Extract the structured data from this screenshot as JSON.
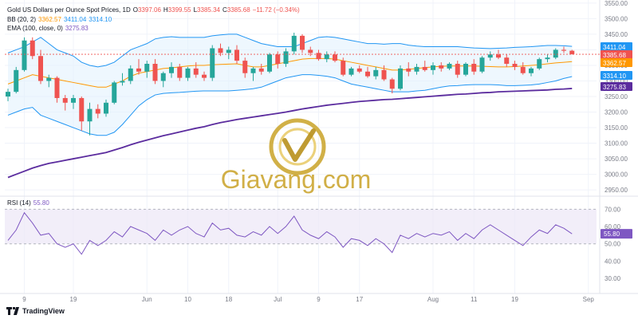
{
  "header": {
    "title": "Gold US Dollars per Ounce Spot Prices, 1D",
    "ohlc": {
      "o_label": "O",
      "o": "3397.06",
      "h_label": "H",
      "h": "3399.55",
      "l_label": "L",
      "l": "3385.34",
      "c_label": "C",
      "c": "3385.68",
      "change": "−11.72 (−0.34%)"
    },
    "bb": {
      "label": "BB (20, 2)",
      "basis": "3362.57",
      "upper": "3411.04",
      "lower": "3314.10"
    },
    "ema": {
      "label": "EMA (100, close, 0)",
      "value": "3275.83"
    },
    "rsi": {
      "label": "RSI (14)",
      "value": "55.80"
    }
  },
  "watermark": {
    "text": "Giavang.com"
  },
  "footer": {
    "brand": "TradingView"
  },
  "colors": {
    "up": "#26a69a",
    "down": "#ef5350",
    "basis": "#ff9800",
    "bands": "#2196f3",
    "band_fill": "#e3f2fd",
    "ema": "#7e57c2",
    "rsi": "#7e57c2",
    "rsi_fill": "#ede7f6",
    "gold": "#c9a227"
  },
  "chart_data": [
    {
      "type": "candlestick",
      "title": "Gold US Dollars per Ounce Spot Prices, 1D",
      "ylim": [
        2940,
        3560
      ],
      "y_ticks": [
        3550,
        3500,
        3450,
        3400,
        3350,
        3300,
        3250,
        3200,
        3150,
        3100,
        3050,
        3000,
        2950
      ],
      "x_ticks": [
        "9",
        "19",
        "Jun",
        "10",
        "18",
        "Jul",
        "9",
        "17",
        "Aug",
        "11",
        "19",
        "Sep"
      ],
      "price_labels": [
        "3411.04",
        "3385.68",
        "3362.57",
        "3314.10",
        "3275.83"
      ],
      "candles": [
        {
          "o": 3250,
          "h": 3275,
          "l": 3235,
          "c": 3265
        },
        {
          "o": 3265,
          "h": 3345,
          "l": 3260,
          "c": 3335
        },
        {
          "o": 3335,
          "h": 3440,
          "l": 3330,
          "c": 3430
        },
        {
          "o": 3430,
          "h": 3440,
          "l": 3370,
          "c": 3380
        },
        {
          "o": 3380,
          "h": 3400,
          "l": 3290,
          "c": 3300
        },
        {
          "o": 3300,
          "h": 3320,
          "l": 3280,
          "c": 3310
        },
        {
          "o": 3310,
          "h": 3315,
          "l": 3230,
          "c": 3245
        },
        {
          "o": 3245,
          "h": 3255,
          "l": 3205,
          "c": 3230
        },
        {
          "o": 3230,
          "h": 3255,
          "l": 3210,
          "c": 3245
        },
        {
          "o": 3245,
          "h": 3250,
          "l": 3140,
          "c": 3170
        },
        {
          "o": 3170,
          "h": 3230,
          "l": 3125,
          "c": 3210
        },
        {
          "o": 3210,
          "h": 3225,
          "l": 3180,
          "c": 3195
        },
        {
          "o": 3195,
          "h": 3240,
          "l": 3185,
          "c": 3230
        },
        {
          "o": 3230,
          "h": 3300,
          "l": 3225,
          "c": 3295
        },
        {
          "o": 3295,
          "h": 3325,
          "l": 3285,
          "c": 3300
        },
        {
          "o": 3300,
          "h": 3350,
          "l": 3290,
          "c": 3340
        },
        {
          "o": 3340,
          "h": 3370,
          "l": 3320,
          "c": 3330
        },
        {
          "o": 3330,
          "h": 3365,
          "l": 3310,
          "c": 3355
        },
        {
          "o": 3355,
          "h": 3370,
          "l": 3290,
          "c": 3300
        },
        {
          "o": 3300,
          "h": 3330,
          "l": 3280,
          "c": 3325
        },
        {
          "o": 3325,
          "h": 3360,
          "l": 3310,
          "c": 3345
        },
        {
          "o": 3345,
          "h": 3355,
          "l": 3300,
          "c": 3310
        },
        {
          "o": 3310,
          "h": 3345,
          "l": 3300,
          "c": 3340
        },
        {
          "o": 3340,
          "h": 3360,
          "l": 3310,
          "c": 3320
        },
        {
          "o": 3320,
          "h": 3330,
          "l": 3300,
          "c": 3310
        },
        {
          "o": 3310,
          "h": 3415,
          "l": 3300,
          "c": 3405
        },
        {
          "o": 3405,
          "h": 3420,
          "l": 3380,
          "c": 3390
        },
        {
          "o": 3390,
          "h": 3410,
          "l": 3370,
          "c": 3400
        },
        {
          "o": 3400,
          "h": 3415,
          "l": 3355,
          "c": 3365
        },
        {
          "o": 3365,
          "h": 3375,
          "l": 3310,
          "c": 3325
        },
        {
          "o": 3325,
          "h": 3345,
          "l": 3300,
          "c": 3340
        },
        {
          "o": 3340,
          "h": 3355,
          "l": 3320,
          "c": 3330
        },
        {
          "o": 3330,
          "h": 3390,
          "l": 3325,
          "c": 3385
        },
        {
          "o": 3385,
          "h": 3395,
          "l": 3340,
          "c": 3355
        },
        {
          "o": 3355,
          "h": 3405,
          "l": 3345,
          "c": 3395
        },
        {
          "o": 3395,
          "h": 3455,
          "l": 3385,
          "c": 3445
        },
        {
          "o": 3445,
          "h": 3450,
          "l": 3390,
          "c": 3400
        },
        {
          "o": 3400,
          "h": 3410,
          "l": 3380,
          "c": 3390
        },
        {
          "o": 3390,
          "h": 3400,
          "l": 3365,
          "c": 3370
        },
        {
          "o": 3370,
          "h": 3395,
          "l": 3360,
          "c": 3385
        },
        {
          "o": 3385,
          "h": 3395,
          "l": 3360,
          "c": 3365
        },
        {
          "o": 3365,
          "h": 3375,
          "l": 3315,
          "c": 3320
        },
        {
          "o": 3320,
          "h": 3345,
          "l": 3315,
          "c": 3340
        },
        {
          "o": 3340,
          "h": 3350,
          "l": 3325,
          "c": 3330
        },
        {
          "o": 3330,
          "h": 3345,
          "l": 3310,
          "c": 3315
        },
        {
          "o": 3315,
          "h": 3345,
          "l": 3305,
          "c": 3335
        },
        {
          "o": 3335,
          "h": 3350,
          "l": 3300,
          "c": 3305
        },
        {
          "o": 3305,
          "h": 3310,
          "l": 3260,
          "c": 3275
        },
        {
          "o": 3275,
          "h": 3350,
          "l": 3270,
          "c": 3340
        },
        {
          "o": 3340,
          "h": 3360,
          "l": 3315,
          "c": 3330
        },
        {
          "o": 3330,
          "h": 3355,
          "l": 3320,
          "c": 3345
        },
        {
          "o": 3345,
          "h": 3365,
          "l": 3330,
          "c": 3335
        },
        {
          "o": 3335,
          "h": 3360,
          "l": 3320,
          "c": 3350
        },
        {
          "o": 3350,
          "h": 3360,
          "l": 3330,
          "c": 3340
        },
        {
          "o": 3340,
          "h": 3360,
          "l": 3335,
          "c": 3355
        },
        {
          "o": 3355,
          "h": 3365,
          "l": 3310,
          "c": 3320
        },
        {
          "o": 3320,
          "h": 3360,
          "l": 3315,
          "c": 3355
        },
        {
          "o": 3355,
          "h": 3370,
          "l": 3320,
          "c": 3330
        },
        {
          "o": 3330,
          "h": 3380,
          "l": 3325,
          "c": 3375
        },
        {
          "o": 3375,
          "h": 3395,
          "l": 3365,
          "c": 3385
        },
        {
          "o": 3385,
          "h": 3400,
          "l": 3370,
          "c": 3375
        },
        {
          "o": 3375,
          "h": 3385,
          "l": 3345,
          "c": 3355
        },
        {
          "o": 3355,
          "h": 3365,
          "l": 3335,
          "c": 3345
        },
        {
          "o": 3345,
          "h": 3360,
          "l": 3320,
          "c": 3325
        },
        {
          "o": 3325,
          "h": 3345,
          "l": 3315,
          "c": 3340
        },
        {
          "o": 3340,
          "h": 3375,
          "l": 3335,
          "c": 3370
        },
        {
          "o": 3370,
          "h": 3385,
          "l": 3360,
          "c": 3375
        },
        {
          "o": 3375,
          "h": 3405,
          "l": 3370,
          "c": 3400
        },
        {
          "o": 3400,
          "h": 3410,
          "l": 3390,
          "c": 3397
        },
        {
          "o": 3397,
          "h": 3400,
          "l": 3385,
          "c": 3386
        }
      ],
      "bb_upper": [
        3390,
        3400,
        3410,
        3425,
        3440,
        3420,
        3400,
        3390,
        3380,
        3360,
        3350,
        3345,
        3350,
        3360,
        3380,
        3400,
        3410,
        3420,
        3435,
        3440,
        3442,
        3440,
        3440,
        3440,
        3440,
        3445,
        3448,
        3450,
        3450,
        3440,
        3430,
        3420,
        3415,
        3410,
        3410,
        3410,
        3420,
        3430,
        3440,
        3442,
        3440,
        3435,
        3430,
        3425,
        3420,
        3420,
        3418,
        3420,
        3420,
        3415,
        3412,
        3410,
        3410,
        3410,
        3410,
        3410,
        3408,
        3406,
        3405,
        3404,
        3405,
        3406,
        3408,
        3409,
        3410,
        3412,
        3414,
        3414,
        3413,
        3411
      ],
      "bb_basis": [
        3290,
        3300,
        3310,
        3320,
        3315,
        3310,
        3305,
        3300,
        3295,
        3290,
        3285,
        3280,
        3280,
        3290,
        3300,
        3315,
        3325,
        3330,
        3335,
        3340,
        3342,
        3345,
        3348,
        3350,
        3350,
        3352,
        3353,
        3354,
        3355,
        3350,
        3345,
        3345,
        3350,
        3355,
        3360,
        3365,
        3370,
        3372,
        3372,
        3372,
        3370,
        3365,
        3360,
        3355,
        3350,
        3345,
        3340,
        3335,
        3335,
        3337,
        3340,
        3343,
        3345,
        3347,
        3348,
        3348,
        3348,
        3348,
        3347,
        3346,
        3345,
        3345,
        3346,
        3348,
        3350,
        3352,
        3355,
        3358,
        3360,
        3362
      ],
      "bb_lower": [
        3190,
        3200,
        3210,
        3215,
        3190,
        3180,
        3170,
        3160,
        3150,
        3140,
        3130,
        3125,
        3125,
        3135,
        3160,
        3190,
        3220,
        3240,
        3255,
        3260,
        3262,
        3263,
        3265,
        3267,
        3268,
        3268,
        3268,
        3268,
        3270,
        3272,
        3275,
        3280,
        3290,
        3300,
        3310,
        3315,
        3320,
        3320,
        3318,
        3315,
        3310,
        3300,
        3290,
        3285,
        3280,
        3275,
        3270,
        3265,
        3265,
        3265,
        3268,
        3270,
        3275,
        3280,
        3284,
        3285,
        3287,
        3288,
        3288,
        3288,
        3287,
        3285,
        3285,
        3286,
        3287,
        3290,
        3295,
        3300,
        3308,
        3314
      ],
      "ema": [
        2990,
        3000,
        3010,
        3020,
        3028,
        3035,
        3040,
        3045,
        3050,
        3055,
        3060,
        3065,
        3070,
        3078,
        3086,
        3095,
        3103,
        3110,
        3117,
        3124,
        3130,
        3136,
        3142,
        3148,
        3153,
        3160,
        3166,
        3171,
        3176,
        3180,
        3184,
        3188,
        3192,
        3196,
        3200,
        3205,
        3210,
        3214,
        3218,
        3222,
        3225,
        3228,
        3231,
        3234,
        3236,
        3238,
        3240,
        3241,
        3243,
        3245,
        3247,
        3249,
        3251,
        3253,
        3255,
        3257,
        3258,
        3260,
        3262,
        3263,
        3265,
        3266,
        3267,
        3268,
        3269,
        3270,
        3271,
        3273,
        3274,
        3275.83
      ]
    },
    {
      "type": "line",
      "title": "RSI (14)",
      "ylim": [
        25,
        72
      ],
      "y_ticks": [
        70,
        60,
        50,
        40,
        30
      ],
      "band": [
        50,
        70
      ],
      "values": [
        52,
        58,
        68,
        62,
        55,
        56,
        50,
        48,
        50,
        44,
        52,
        49,
        52,
        57,
        54,
        60,
        58,
        56,
        52,
        58,
        55,
        58,
        60,
        56,
        54,
        62,
        58,
        59,
        55,
        54,
        57,
        55,
        60,
        56,
        60,
        66,
        58,
        55,
        53,
        57,
        54,
        48,
        53,
        52,
        49,
        53,
        50,
        45,
        55,
        53,
        56,
        54,
        56,
        55,
        57,
        52,
        56,
        53,
        58,
        61,
        58,
        55,
        52,
        49,
        54,
        58,
        56,
        61,
        59,
        55.8
      ]
    }
  ]
}
